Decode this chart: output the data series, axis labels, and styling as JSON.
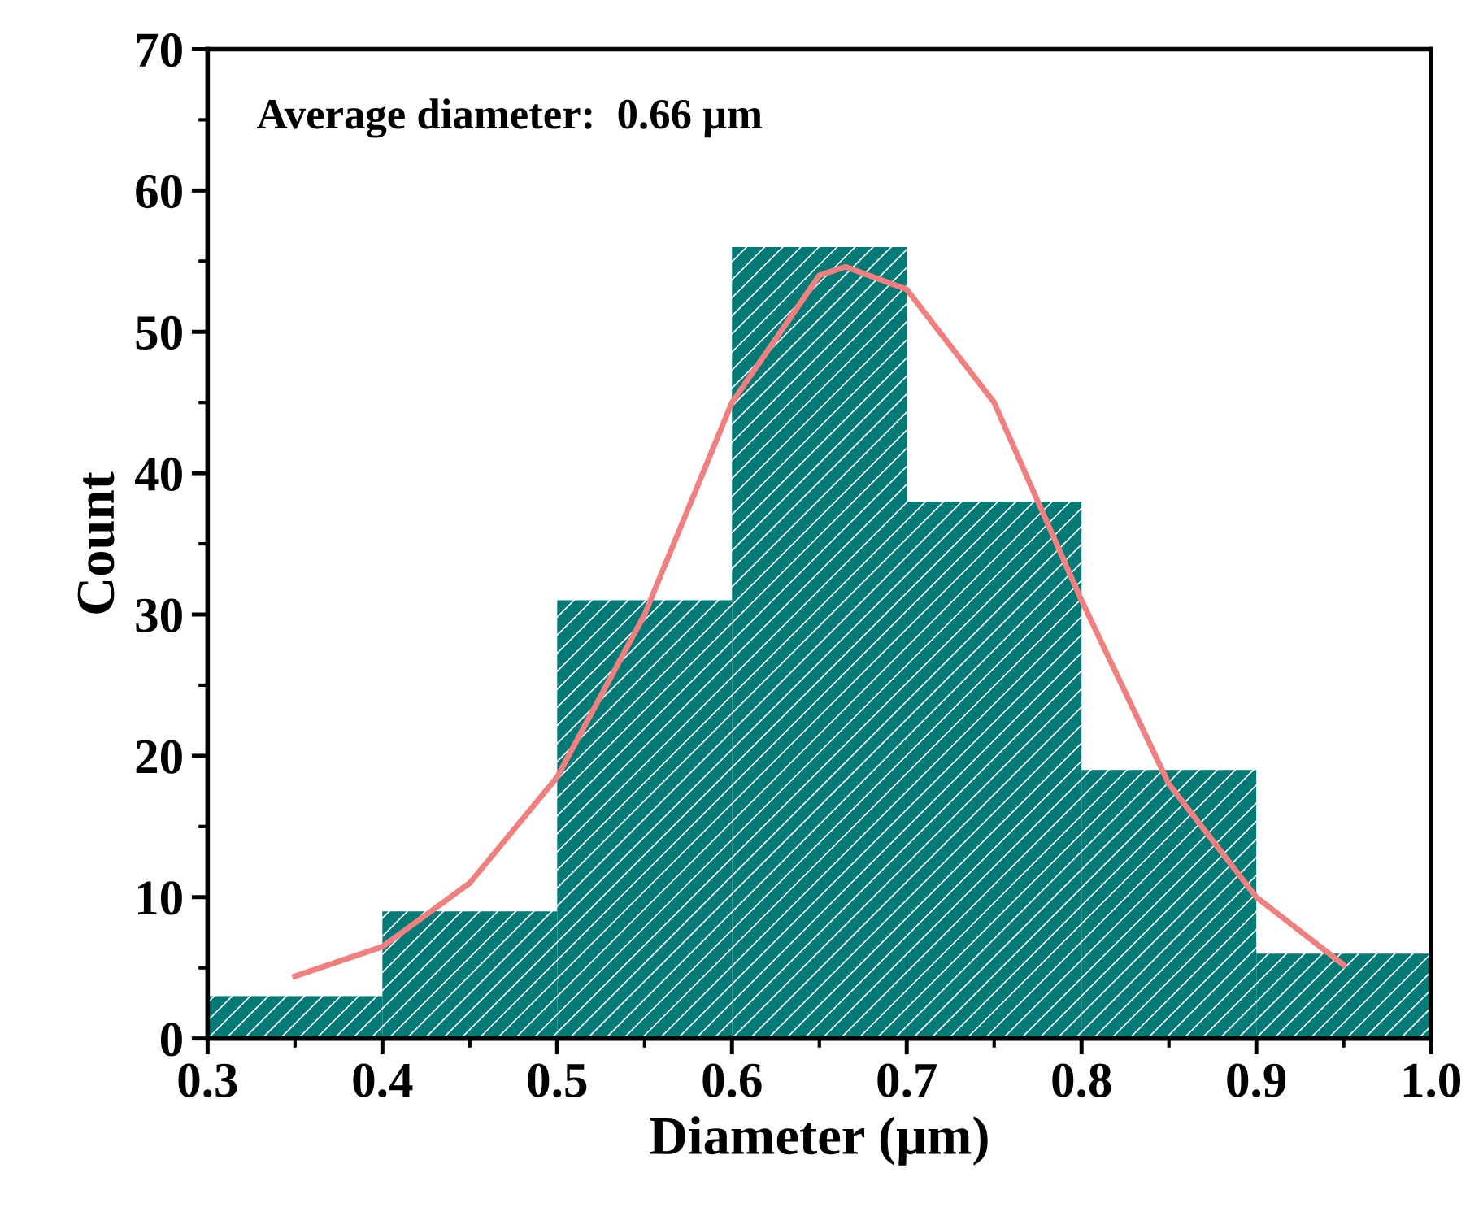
{
  "chart_data": {
    "type": "histogram",
    "xlabel": "Diameter (μm)",
    "ylabel": "Count",
    "annotations": [
      "Average diameter:  0.66 μm"
    ],
    "bins": [
      0.3,
      0.4,
      0.5,
      0.6,
      0.7,
      0.8,
      0.9,
      1.0
    ],
    "values": [
      3,
      9,
      31,
      56,
      38,
      19,
      6
    ],
    "color": "#037a76",
    "series": [
      {
        "type": "line",
        "color": "#f08080",
        "x": [
          0.35,
          0.4,
          0.45,
          0.5,
          0.55,
          0.6,
          0.65,
          0.665,
          0.7,
          0.75,
          0.8,
          0.85,
          0.9,
          0.95
        ],
        "values": [
          4.4,
          6.5,
          11,
          18.5,
          30,
          45,
          54,
          54.6,
          53,
          45,
          31,
          18,
          10,
          5.2
        ]
      }
    ],
    "xlim": [
      0.3,
      1.0
    ],
    "xticks": [
      {
        "value": 0.3,
        "label": "0.3"
      },
      {
        "value": 0.4,
        "label": "0.4"
      },
      {
        "value": 0.5,
        "label": "0.5"
      },
      {
        "value": 0.6,
        "label": "0.6"
      },
      {
        "value": 0.7,
        "label": "0.7"
      },
      {
        "value": 0.8,
        "label": "0.8"
      },
      {
        "value": 0.9,
        "label": "0.9"
      },
      {
        "value": 1.0,
        "label": "1.0"
      }
    ],
    "ylim": [
      0,
      70
    ],
    "yticks": [
      0,
      10,
      20,
      30,
      40,
      50,
      60,
      70
    ],
    "grid": false
  }
}
